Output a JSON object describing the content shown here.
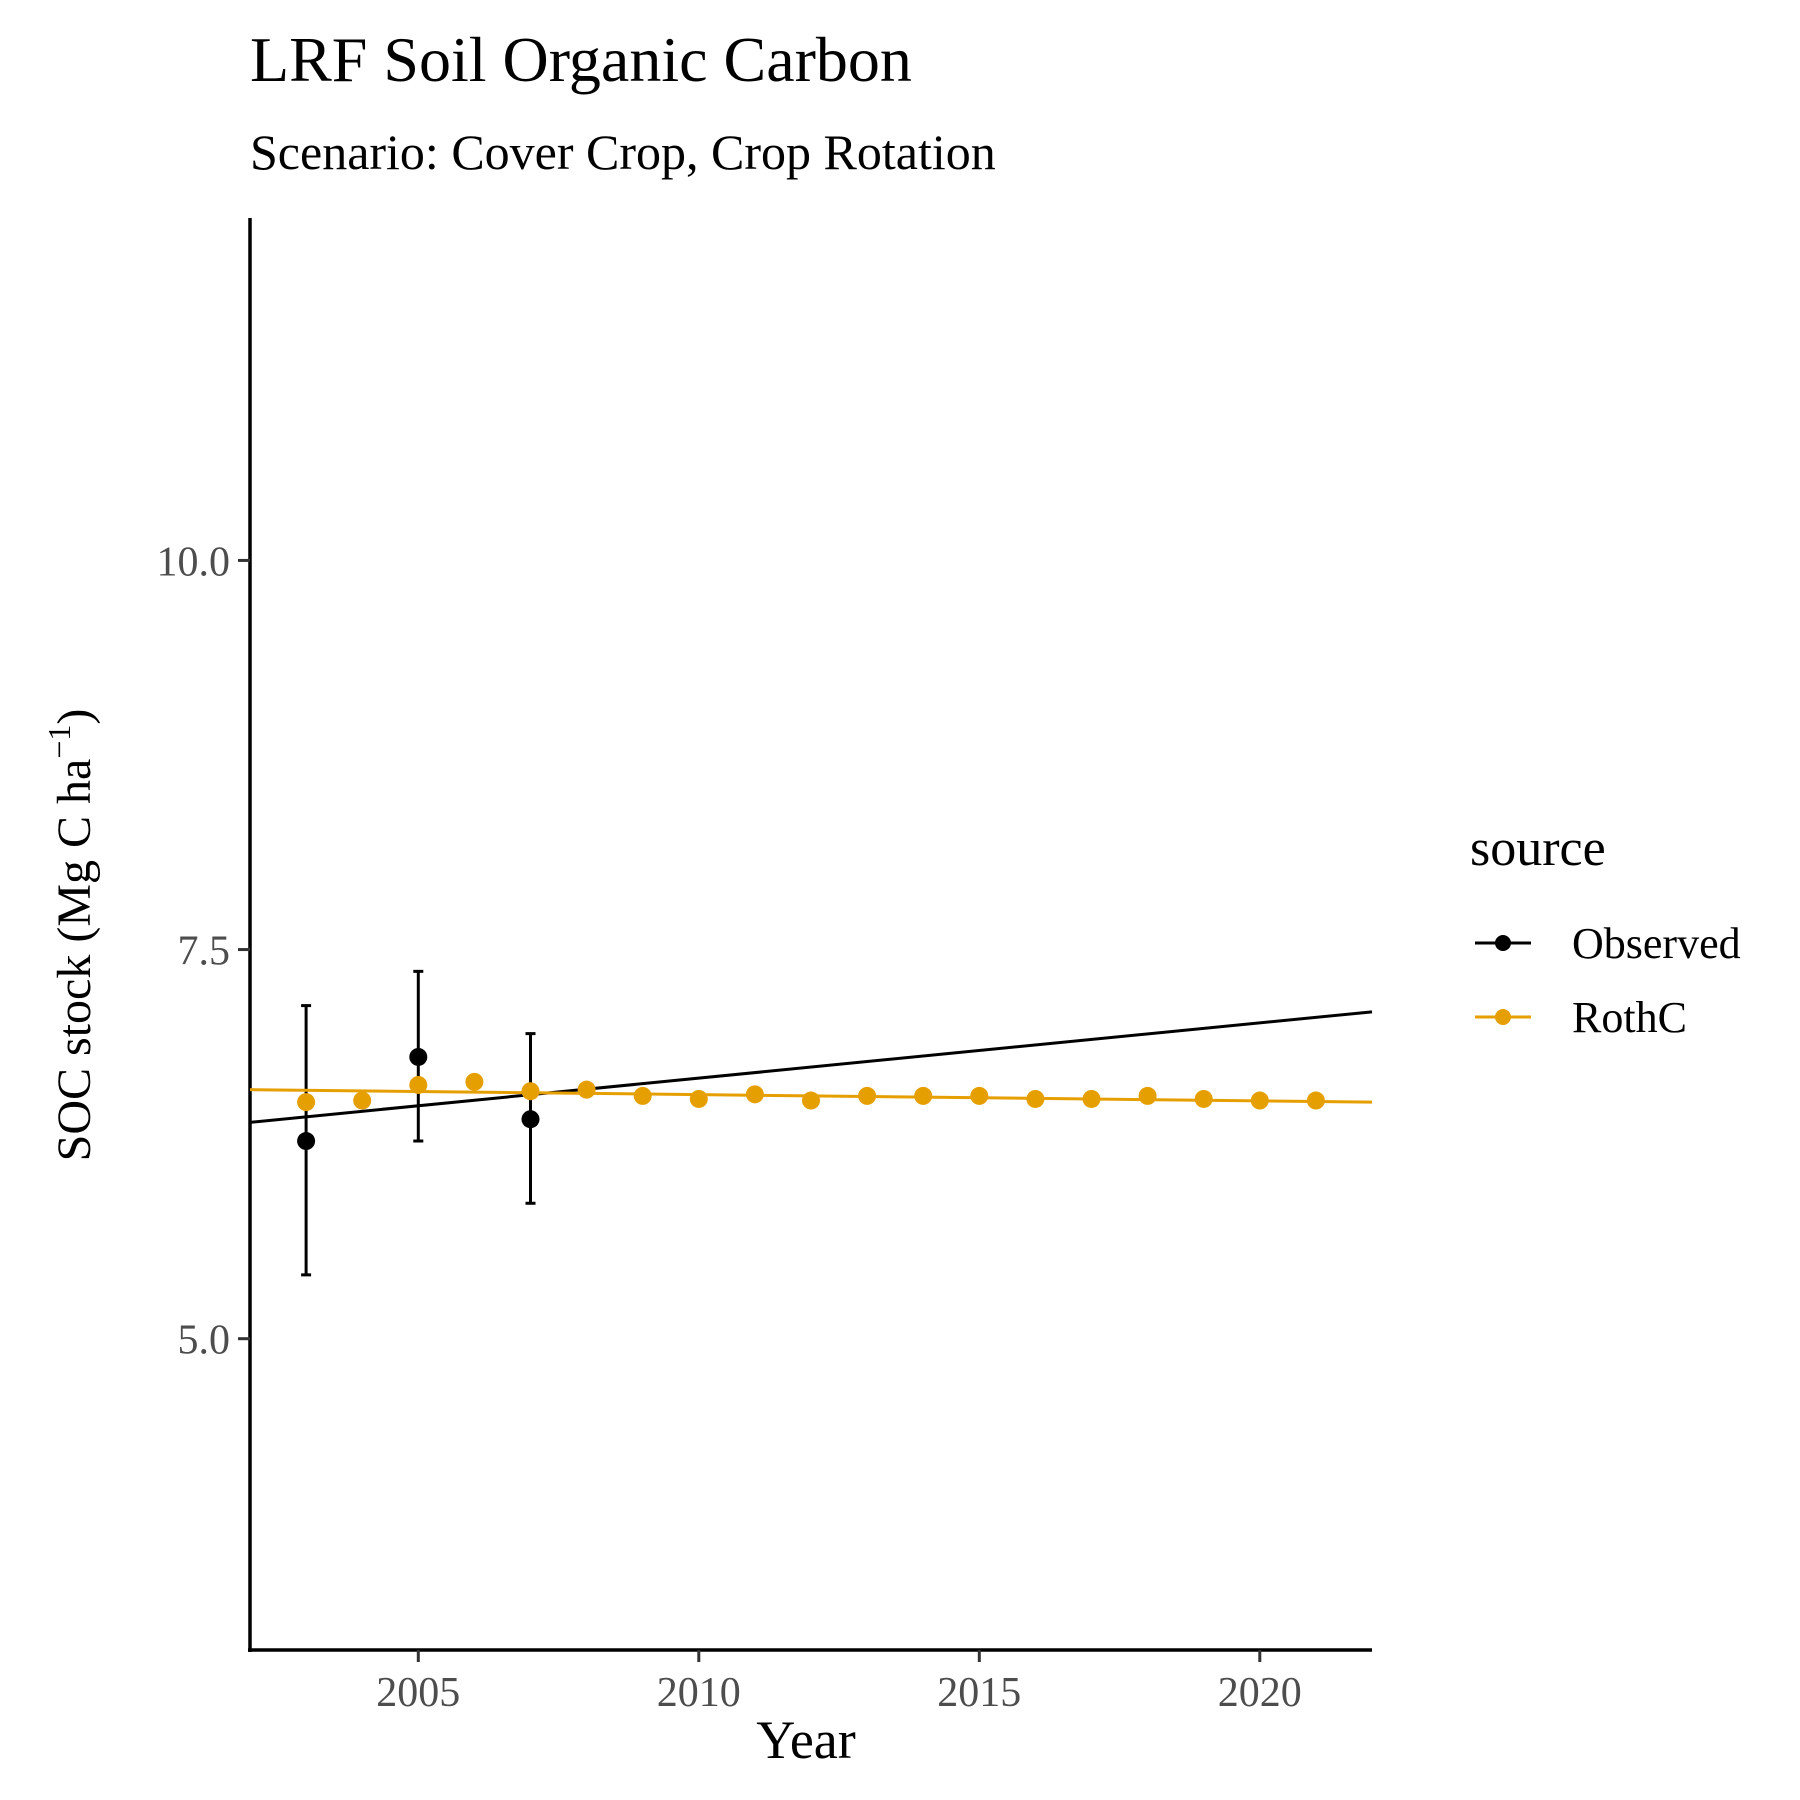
{
  "chart_data": {
    "type": "scatter",
    "title": "LRF Soil Organic Carbon",
    "subtitle": "Scenario: Cover Crop, Crop Rotation",
    "xlabel": "Year",
    "ylabel_main": "SOC stock (Mg C ha",
    "ylabel_sup": "−1",
    "ylabel_close": ")",
    "xlim": [
      2002,
      2022
    ],
    "ylim": [
      3.0,
      12.2
    ],
    "x_ticks": [
      2005,
      2010,
      2015,
      2020
    ],
    "x_tick_labels": [
      "2005",
      "2010",
      "2015",
      "2020"
    ],
    "y_ticks": [
      5.0,
      7.5,
      10.0
    ],
    "y_tick_labels": [
      "5.0",
      "7.5",
      "10.0"
    ],
    "grid": false,
    "legend": {
      "title": "source",
      "position": "right",
      "entries": [
        {
          "label": "Observed",
          "color": "#000000"
        },
        {
          "label": "RothC",
          "color": "#E69F00"
        }
      ]
    },
    "series": [
      {
        "name": "Observed",
        "color": "#000000",
        "points": [
          {
            "x": 2003,
            "y": 6.27,
            "ymin": 5.41,
            "ymax": 7.14
          },
          {
            "x": 2005,
            "y": 6.81,
            "ymin": 6.27,
            "ymax": 7.36
          },
          {
            "x": 2007,
            "y": 6.41,
            "ymin": 5.87,
            "ymax": 6.96
          }
        ],
        "trend": {
          "x": [
            2002,
            2022
          ],
          "y": [
            6.39,
            7.1
          ]
        }
      },
      {
        "name": "RothC",
        "color": "#E69F00",
        "points": [
          {
            "x": 2003,
            "y": 6.52
          },
          {
            "x": 2004,
            "y": 6.53
          },
          {
            "x": 2005,
            "y": 6.63
          },
          {
            "x": 2006,
            "y": 6.65
          },
          {
            "x": 2007,
            "y": 6.59
          },
          {
            "x": 2008,
            "y": 6.6
          },
          {
            "x": 2009,
            "y": 6.56
          },
          {
            "x": 2010,
            "y": 6.54
          },
          {
            "x": 2011,
            "y": 6.57
          },
          {
            "x": 2012,
            "y": 6.53
          },
          {
            "x": 2013,
            "y": 6.56
          },
          {
            "x": 2014,
            "y": 6.56
          },
          {
            "x": 2015,
            "y": 6.56
          },
          {
            "x": 2016,
            "y": 6.54
          },
          {
            "x": 2017,
            "y": 6.54
          },
          {
            "x": 2018,
            "y": 6.56
          },
          {
            "x": 2019,
            "y": 6.54
          },
          {
            "x": 2020,
            "y": 6.53
          },
          {
            "x": 2021,
            "y": 6.53
          }
        ],
        "trend": {
          "x": [
            2002,
            2022
          ],
          "y": [
            6.6,
            6.52
          ]
        }
      }
    ]
  }
}
